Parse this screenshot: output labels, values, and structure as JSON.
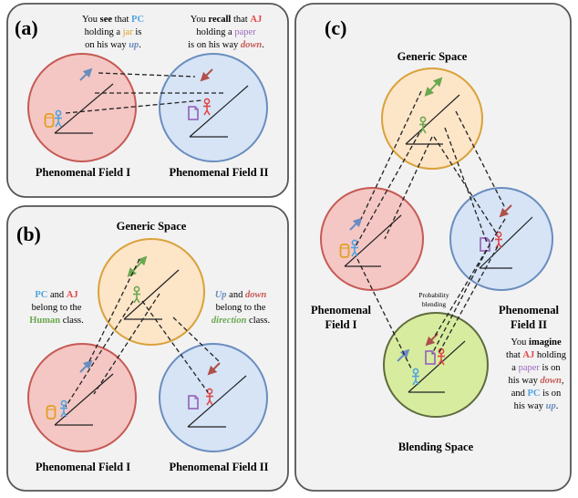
{
  "colors": {
    "panel_bg": "#f2f2f2",
    "panel_border": "#555555",
    "red_fill": "#f4c7c4",
    "red_stroke": "#c65a55",
    "blue_fill": "#d6e4f6",
    "blue_stroke": "#6a8dbf",
    "orange_fill": "#fde5c8",
    "orange_stroke": "#d9a23a",
    "green_fill": "#d7ec9f",
    "green_stroke": "#5e6b3e",
    "pc_color": "#4fa3e0",
    "aj_color": "#e04848",
    "human_color": "#6aa84f",
    "jar_color": "#e0a020",
    "paper_color": "#9b6bbf",
    "up_color": "#6a8dbf",
    "down_color": "#c65a55"
  },
  "panel_a": {
    "letter": "(a)",
    "see_text": {
      "l1a": "You ",
      "l1b": "see",
      "l1c": " that ",
      "l1d": "PC",
      "l2a": "holding a ",
      "l2b": "jar",
      "l2c": " is",
      "l3a": "on his way ",
      "l3b": "up",
      "l3c": "."
    },
    "recall_text": {
      "l1a": "You ",
      "l1b": "recall",
      "l1c": " that ",
      "l1d": "AJ",
      "l2a": "holding a ",
      "l2b": "paper",
      "l3a": "is on his way ",
      "l3b": "down",
      "l3c": "."
    },
    "field1_label": "Phenomenal Field I",
    "field2_label": "Phenomenal Field II"
  },
  "panel_b": {
    "letter": "(b)",
    "generic_label": "Generic Space",
    "left_text": {
      "l1a": "PC",
      "l1b": " and ",
      "l1c": "AJ",
      "l2": "belong to the",
      "l3a": "Human",
      "l3b": " class."
    },
    "right_text": {
      "l1a": "Up",
      "l1b": " and ",
      "l1c": "down",
      "l2": "belong to the",
      "l3a": "direction",
      "l3b": " class."
    },
    "field1_label": "Phenomenal Field I",
    "field2_label": "Phenomenal Field II"
  },
  "panel_c": {
    "letter": "(c)",
    "generic_label": "Generic Space",
    "field1_label_l1": "Phenomenal",
    "field1_label_l2": "Field I",
    "field2_label_l1": "Phenomenal",
    "field2_label_l2": "Field II",
    "prob_l1": "Probability",
    "prob_l2": "blending",
    "blending_label": "Blending Space",
    "imagine_text": {
      "l1a": "You ",
      "l1b": "imagine",
      "l2a": "that ",
      "l2b": "AJ",
      "l2c": " holding",
      "l3a": "a ",
      "l3b": "paper",
      "l3c": " is on",
      "l4a": "his way ",
      "l4b": "down",
      "l4c": ",",
      "l5a": "and ",
      "l5b": "PC",
      "l5c": " is on",
      "l6a": "his way ",
      "l6b": "up",
      "l6c": "."
    }
  }
}
